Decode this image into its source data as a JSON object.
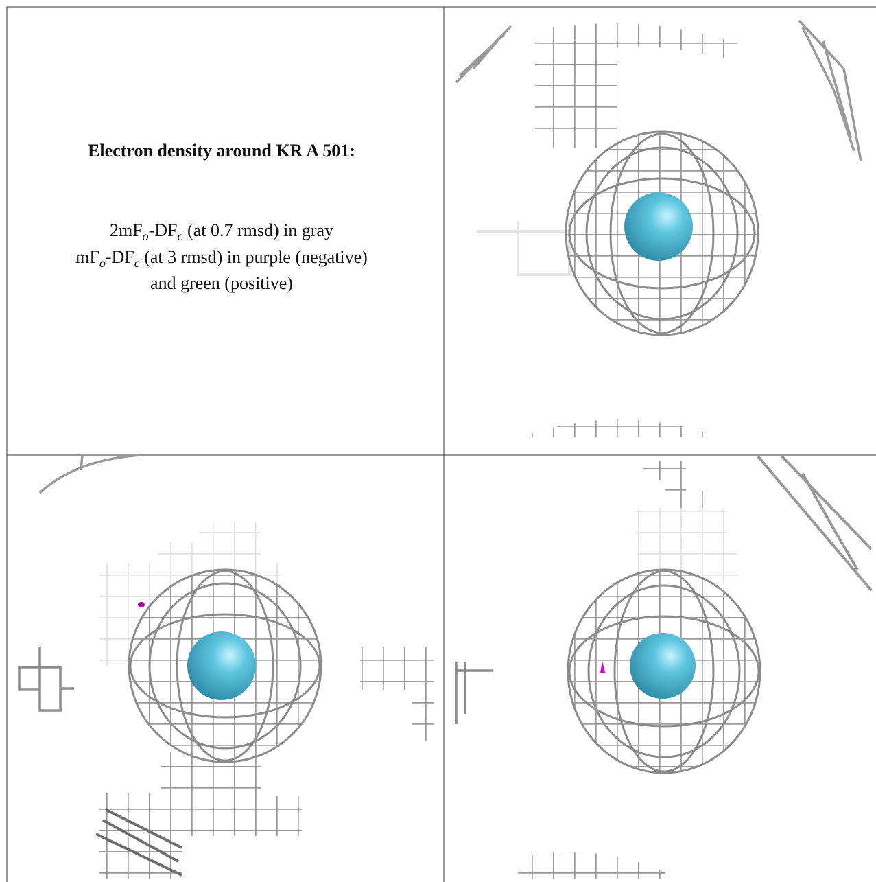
{
  "caption": {
    "title": "Electron density around KR A 501:",
    "lines": [
      [
        {
          "text": "2mF"
        },
        {
          "text": "o",
          "style": "sub"
        },
        {
          "text": "-DF"
        },
        {
          "text": "c",
          "style": "sub"
        },
        {
          "text": " (at 0.7 rmsd) in gray"
        }
      ],
      [
        {
          "text": "mF"
        },
        {
          "text": "o",
          "style": "sub"
        },
        {
          "text": "-DF"
        },
        {
          "text": "c",
          "style": "sub"
        },
        {
          "text": " (at 3 rmsd) in purple (negative)"
        }
      ],
      [
        {
          "text": "and green (positive)"
        }
      ]
    ]
  }
}
